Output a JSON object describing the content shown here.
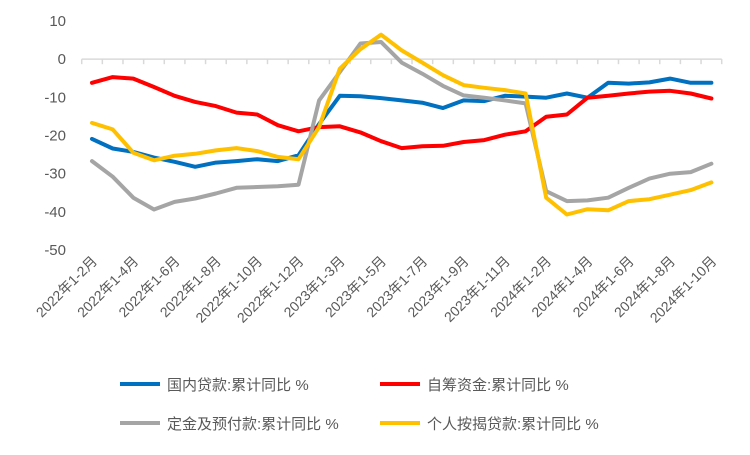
{
  "chart_data": {
    "type": "line",
    "title": "",
    "xlabel": "",
    "ylabel": "",
    "ylim": [
      -50,
      10
    ],
    "yticks": [
      10,
      0,
      -10,
      -20,
      -30,
      -40,
      -50
    ],
    "grid": false,
    "legend_position": "bottom",
    "categories": [
      "2022年1-2月",
      "2022年1-3月",
      "2022年1-4月",
      "2022年1-5月",
      "2022年1-6月",
      "2022年1-7月",
      "2022年1-8月",
      "2022年1-9月",
      "2022年1-10月",
      "2022年1-11月",
      "2022年1-12月",
      "2023年1-2月",
      "2023年1-3月",
      "2023年1-4月",
      "2023年1-5月",
      "2023年1-6月",
      "2023年1-7月",
      "2023年1-8月",
      "2023年1-9月",
      "2023年1-10月",
      "2023年1-11月",
      "2023年1-12月",
      "2024年1-2月",
      "2024年1-3月",
      "2024年1-4月",
      "2024年1-5月",
      "2024年1-6月",
      "2024年1-7月",
      "2024年1-8月",
      "2024年1-9月",
      "2024年1-10月"
    ],
    "tick_labels": [
      "2022年1-2月",
      "2022年1-4月",
      "2022年1-6月",
      "2022年1-8月",
      "2022年1-10月",
      "2022年1-12月",
      "2023年1-3月",
      "2023年1-5月",
      "2023年1-7月",
      "2023年1-9月",
      "2023年1-11月",
      "2024年1-2月",
      "2024年1-4月",
      "2024年1-6月",
      "2024年1-8月",
      "2024年1-10月"
    ],
    "series": [
      {
        "name": "国内贷款:累计同比 %",
        "color": "#0070C0",
        "values": [
          -20.9,
          -23.4,
          -24.3,
          -25.8,
          -26.9,
          -28.2,
          -27.1,
          -26.7,
          -26.2,
          -26.7,
          -25.2,
          -17.0,
          -9.6,
          -9.7,
          -10.2,
          -10.8,
          -11.4,
          -12.8,
          -10.8,
          -11.0,
          -9.6,
          -9.8,
          -10.1,
          -9.0,
          -10.1,
          -6.2,
          -6.4,
          -6.1,
          -5.1,
          -6.2,
          -6.2
        ]
      },
      {
        "name": "自筹资金:累计同比 %",
        "color": "#FF0000",
        "values": [
          -6.2,
          -4.7,
          -5.1,
          -7.3,
          -9.6,
          -11.2,
          -12.3,
          -14.0,
          -14.5,
          -17.3,
          -18.9,
          -17.8,
          -17.6,
          -19.2,
          -21.5,
          -23.3,
          -22.8,
          -22.7,
          -21.7,
          -21.2,
          -19.8,
          -18.9,
          -15.1,
          -14.5,
          -10.1,
          -9.6,
          -9.0,
          -8.5,
          -8.3,
          -9.0,
          -10.3
        ]
      },
      {
        "name": "定金及预付款:累计同比 %",
        "color": "#A5A5A5",
        "values": [
          -26.7,
          -30.8,
          -36.3,
          -39.4,
          -37.4,
          -36.5,
          -35.2,
          -33.7,
          -33.5,
          -33.3,
          -32.9,
          -10.8,
          -3.4,
          4.1,
          4.5,
          -0.9,
          -3.8,
          -7.0,
          -9.5,
          -10.1,
          -10.8,
          -11.6,
          -34.6,
          -37.2,
          -37.0,
          -36.3,
          -33.7,
          -31.3,
          -30.0,
          -29.6,
          -27.4
        ]
      },
      {
        "name": "个人按揭贷款:累计同比 %",
        "color": "#FFC000",
        "values": [
          -16.7,
          -18.4,
          -24.5,
          -26.5,
          -25.3,
          -24.8,
          -23.9,
          -23.3,
          -24.1,
          -25.6,
          -26.2,
          -17.8,
          -2.5,
          2.6,
          6.4,
          2.3,
          -0.9,
          -4.2,
          -6.8,
          -7.5,
          -8.1,
          -9.0,
          -36.3,
          -40.7,
          -39.3,
          -39.6,
          -37.2,
          -36.7,
          -35.5,
          -34.3,
          -32.3
        ]
      }
    ]
  }
}
